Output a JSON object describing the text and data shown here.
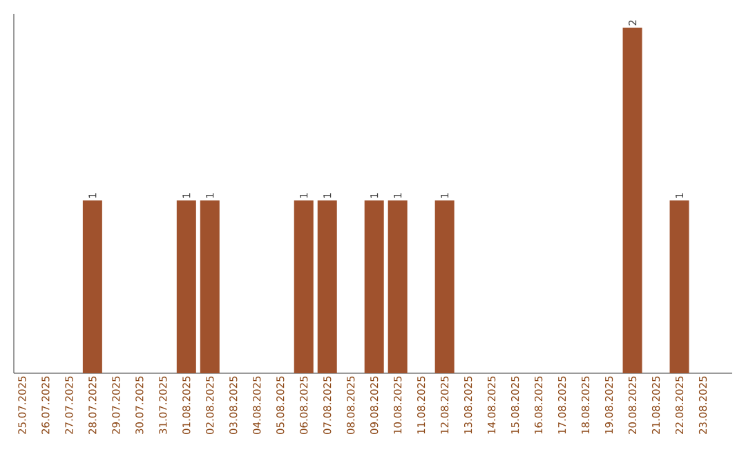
{
  "chart_data": {
    "type": "bar",
    "categories": [
      "25.07.2025",
      "26.07.2025",
      "27.07.2025",
      "28.07.2025",
      "29.07.2025",
      "30.07.2025",
      "31.07.2025",
      "01.08.2025",
      "02.08.2025",
      "03.08.2025",
      "04.08.2025",
      "05.08.2025",
      "06.08.2025",
      "07.08.2025",
      "08.08.2025",
      "09.08.2025",
      "10.08.2025",
      "11.08.2025",
      "12.08.2025",
      "13.08.2025",
      "14.08.2025",
      "15.08.2025",
      "16.08.2025",
      "17.08.2025",
      "18.08.2025",
      "19.08.2025",
      "20.08.2025",
      "21.08.2025",
      "22.08.2025",
      "23.08.2025"
    ],
    "values": [
      0,
      0,
      0,
      1,
      0,
      0,
      0,
      1,
      1,
      0,
      0,
      0,
      1,
      1,
      0,
      1,
      1,
      0,
      1,
      0,
      0,
      0,
      0,
      0,
      0,
      0,
      2,
      0,
      1,
      0
    ],
    "value_labels": [
      null,
      null,
      null,
      "1",
      null,
      null,
      null,
      "1",
      "1",
      null,
      null,
      null,
      "1",
      "1",
      null,
      "1",
      "1",
      null,
      "1",
      null,
      null,
      null,
      null,
      null,
      null,
      null,
      "2",
      null,
      "1",
      null
    ],
    "color": "#a0522d",
    "ylim": [
      0,
      2.08
    ],
    "tick_labels": "x",
    "grid": false
  }
}
